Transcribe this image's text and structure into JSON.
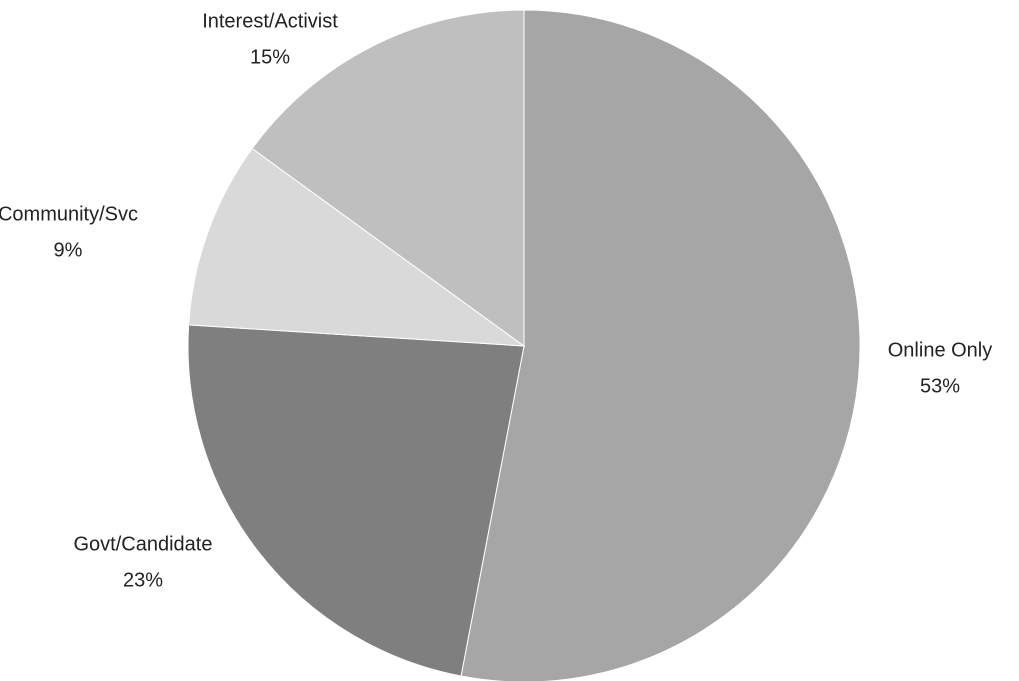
{
  "chart_data": {
    "type": "pie",
    "categories": [
      "Online Only",
      "Govt/Candidate",
      "Community/Svc",
      "Interest/Activist"
    ],
    "values": [
      53,
      23,
      9,
      15
    ],
    "value_labels": [
      "53%",
      "23%",
      "9%",
      "15%"
    ],
    "colors": [
      "#a6a6a6",
      "#7f7f7f",
      "#d9d9d9",
      "#bfbfbf"
    ]
  }
}
